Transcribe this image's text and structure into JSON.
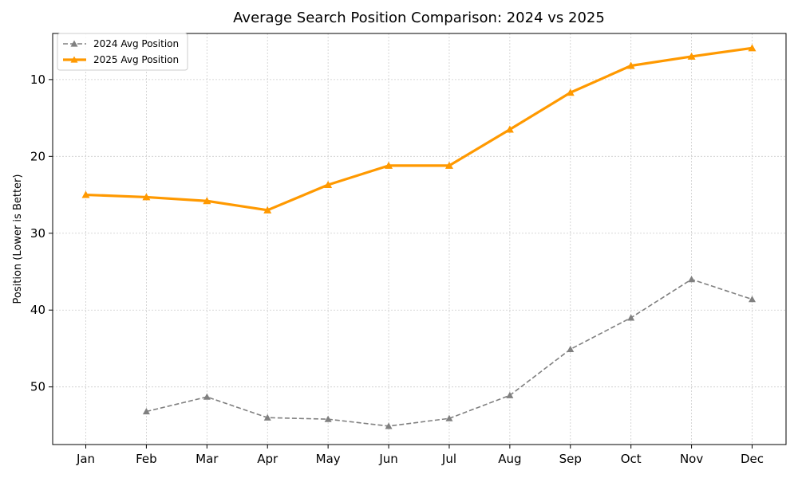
{
  "chart_data": {
    "type": "line",
    "title": "Average Search Position Comparison: 2024 vs 2025",
    "xlabel": "",
    "ylabel": "Position (Lower is Better)",
    "categories": [
      "Jan",
      "Feb",
      "Mar",
      "Apr",
      "May",
      "Jun",
      "Jul",
      "Aug",
      "Sep",
      "Oct",
      "Nov",
      "Dec"
    ],
    "y_inverted": true,
    "ylim": [
      57.5,
      4.0
    ],
    "yticks": [
      10,
      20,
      30,
      40,
      50
    ],
    "grid": true,
    "legend_position": "top-left",
    "series": [
      {
        "name": "2024 Avg Position",
        "color": "#808080",
        "line_style": "dashed",
        "marker": "triangle",
        "values": [
          null,
          53.2,
          51.3,
          54.0,
          54.2,
          55.1,
          54.1,
          51.1,
          45.1,
          41.0,
          36.0,
          38.6
        ]
      },
      {
        "name": "2025 Avg Position",
        "color": "#FF9900",
        "line_style": "solid",
        "marker": "triangle",
        "values": [
          25.0,
          25.3,
          25.8,
          27.0,
          23.7,
          21.2,
          21.2,
          16.5,
          11.7,
          8.2,
          7.0,
          5.9
        ]
      }
    ]
  }
}
